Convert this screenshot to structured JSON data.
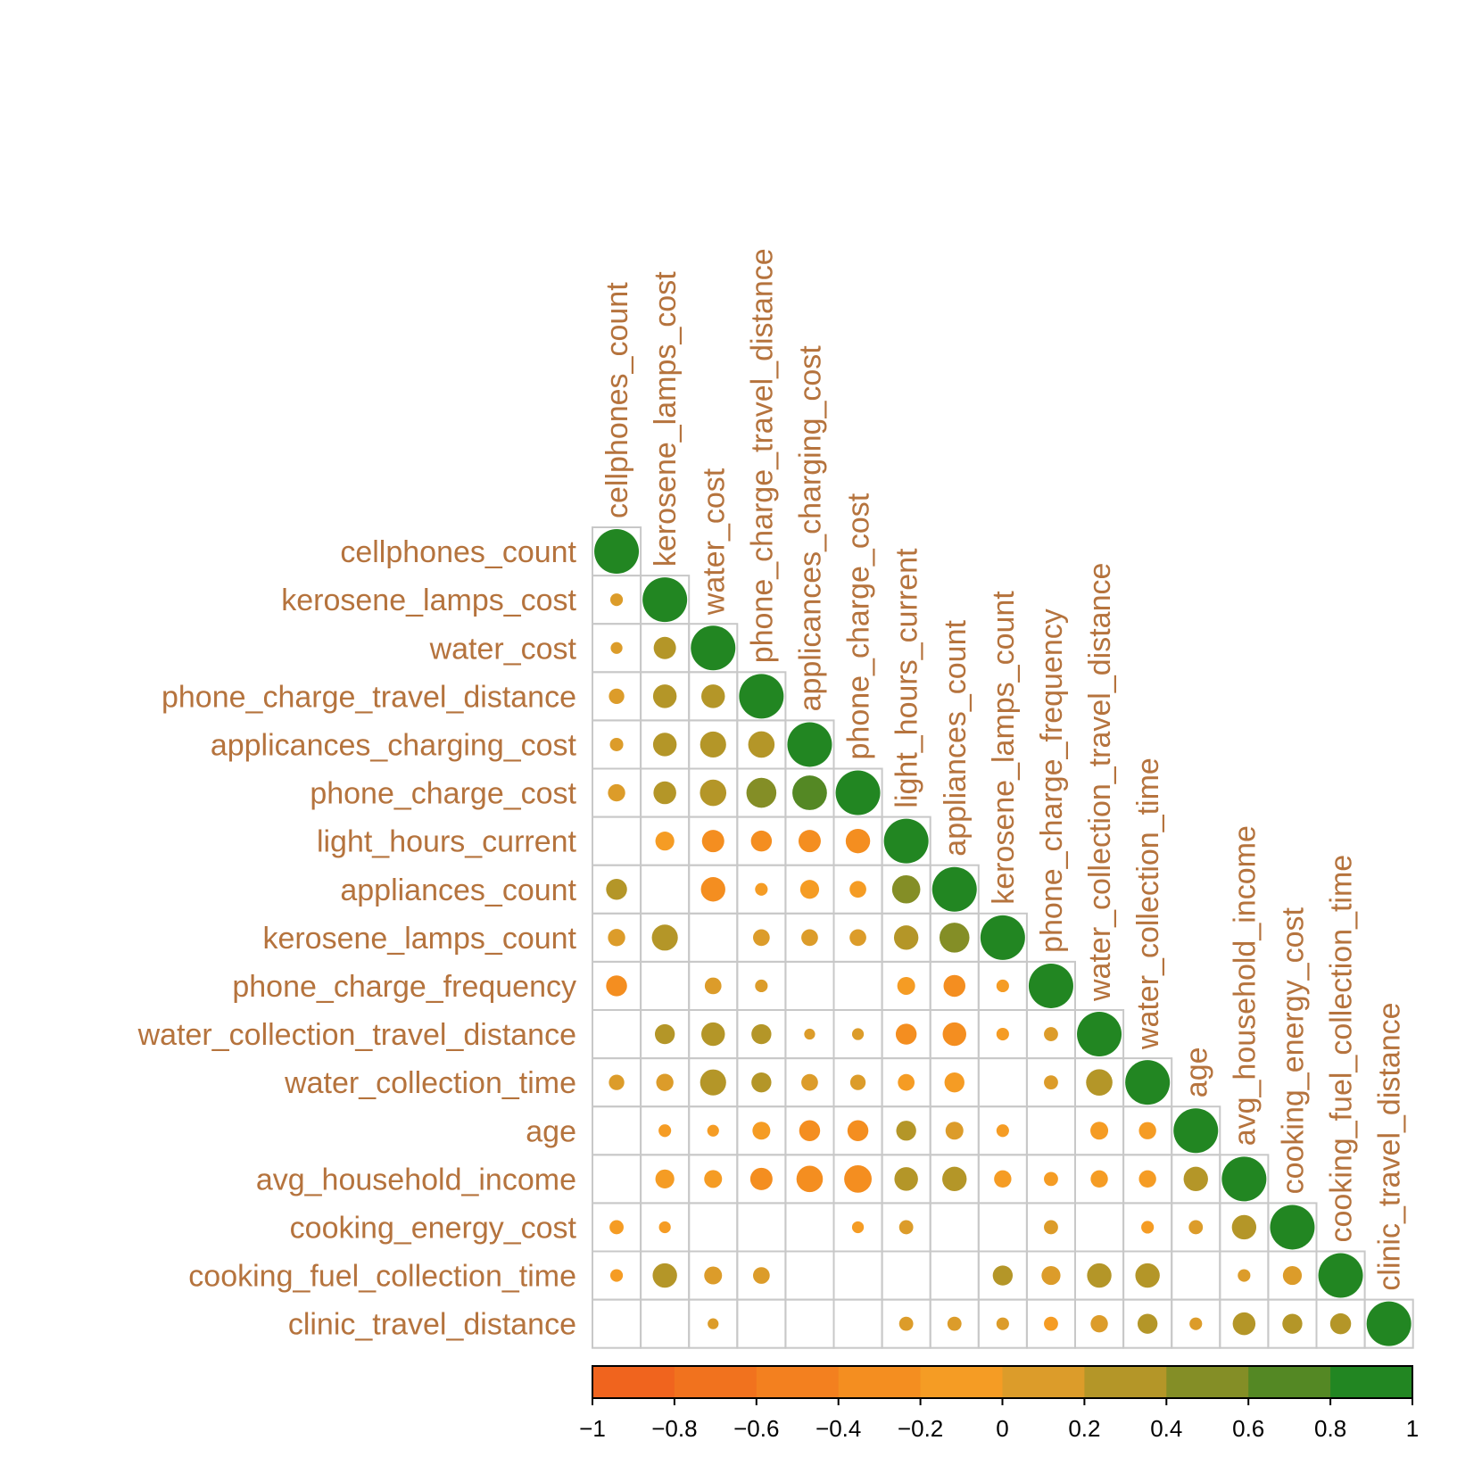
{
  "chart_data": {
    "type": "heatmap",
    "style": "lower-triangle correlation plot, circles sized and colored by correlation",
    "variables": [
      "cellphones_count",
      "kerosene_lamps_cost",
      "water_cost",
      "phone_charge_travel_distance",
      "applicances_charging_cost",
      "phone_charge_cost",
      "light_hours_current",
      "appliances_count",
      "kerosene_lamps_count",
      "phone_charge_frequency",
      "water_collection_travel_distance",
      "water_collection_time",
      "age",
      "avg_household_income",
      "cooking_energy_cost",
      "cooking_fuel_collection_time",
      "clinic_travel_distance"
    ],
    "matrix": [
      [
        1
      ],
      [
        0.08,
        1
      ],
      [
        0.07,
        0.25,
        1
      ],
      [
        0.12,
        0.28,
        0.28,
        1
      ],
      [
        0.09,
        0.28,
        0.34,
        0.35,
        1
      ],
      [
        0.15,
        0.26,
        0.35,
        0.45,
        0.6,
        1
      ],
      [
        null,
        -0.18,
        -0.25,
        -0.22,
        -0.25,
        -0.3,
        1
      ],
      [
        0.22,
        null,
        -0.3,
        -0.08,
        -0.18,
        -0.14,
        0.4,
        1
      ],
      [
        0.15,
        0.34,
        null,
        0.14,
        0.14,
        0.14,
        0.3,
        0.45,
        1
      ],
      [
        -0.22,
        null,
        0.14,
        0.08,
        null,
        null,
        -0.16,
        -0.24,
        -0.08,
        1
      ],
      [
        null,
        0.2,
        0.28,
        0.2,
        0.06,
        0.07,
        -0.22,
        -0.28,
        -0.08,
        0.1,
        1
      ],
      [
        0.12,
        0.15,
        0.34,
        0.2,
        0.14,
        0.12,
        -0.14,
        -0.2,
        null,
        0.1,
        0.35,
        1
      ],
      [
        null,
        -0.08,
        -0.07,
        -0.16,
        -0.22,
        -0.22,
        0.2,
        0.16,
        -0.08,
        null,
        -0.16,
        -0.15,
        1
      ],
      [
        null,
        -0.18,
        -0.16,
        -0.25,
        -0.35,
        -0.38,
        0.28,
        0.3,
        -0.15,
        -0.1,
        -0.15,
        -0.15,
        0.3,
        1
      ],
      [
        -0.1,
        -0.07,
        null,
        null,
        null,
        -0.07,
        0.1,
        null,
        null,
        0.1,
        null,
        -0.08,
        0.1,
        0.3,
        1
      ],
      [
        -0.08,
        0.3,
        0.16,
        0.14,
        null,
        null,
        null,
        null,
        0.2,
        0.18,
        0.3,
        0.3,
        null,
        0.08,
        0.18,
        1
      ],
      [
        null,
        null,
        0.06,
        null,
        null,
        null,
        0.1,
        0.1,
        0.08,
        -0.1,
        0.15,
        0.2,
        0.08,
        0.26,
        0.2,
        0.22,
        1
      ]
    ],
    "colorbar": {
      "ticks": [
        "−1",
        "−0.8",
        "−0.6",
        "−0.4",
        "−0.2",
        "0",
        "0.2",
        "0.4",
        "0.6",
        "0.8",
        "1"
      ],
      "range": [
        -1,
        1
      ],
      "colors": [
        "#f0641e",
        "#f1721e",
        "#f3801f",
        "#f48e20",
        "#f59c24",
        "#dc9c2a",
        "#b49628",
        "#848e26",
        "#548824",
        "#228622"
      ]
    },
    "label_color": "#b5733d",
    "grid_color": "#c8c8c8"
  }
}
